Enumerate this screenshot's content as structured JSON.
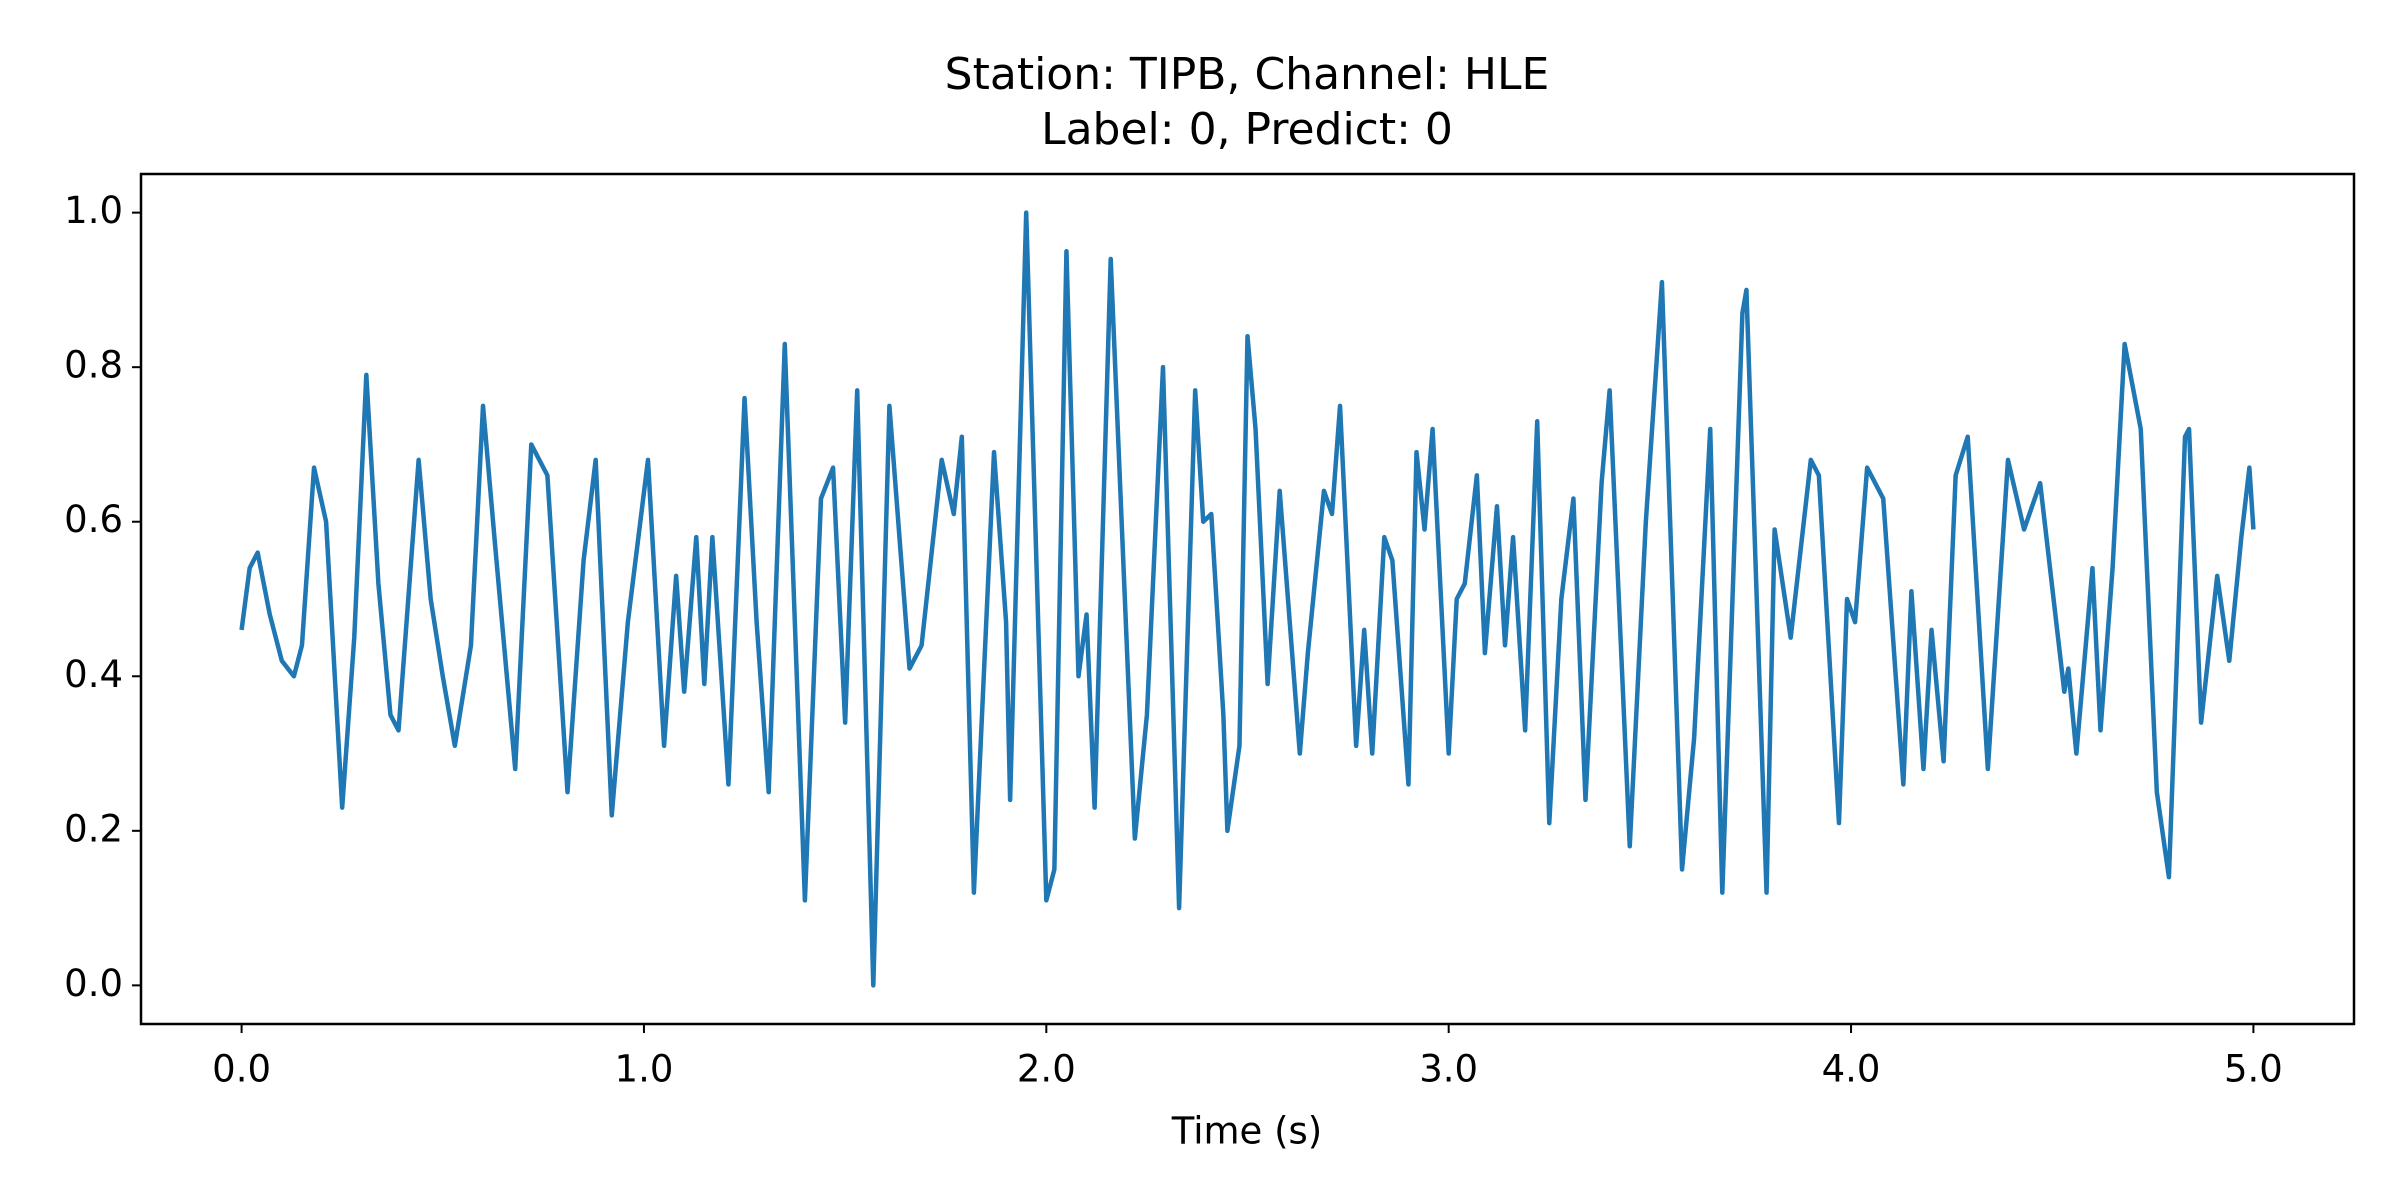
{
  "chart_data": {
    "type": "line",
    "title": [
      "Station: TIPB, Channel: HLE",
      "Label: 0, Predict: 0"
    ],
    "x_label": "Time (s)",
    "xlim": [
      -0.25,
      5.25
    ],
    "ylim": [
      -0.05,
      1.05
    ],
    "xticks": [
      {
        "value": 0,
        "label": "0.0"
      },
      {
        "value": 1,
        "label": "1.0"
      },
      {
        "value": 2,
        "label": "2.0"
      },
      {
        "value": 3,
        "label": "3.0"
      },
      {
        "value": 4,
        "label": "4.0"
      },
      {
        "value": 5,
        "label": "5.0"
      }
    ],
    "yticks": [
      {
        "value": 0,
        "label": "0.0"
      },
      0.2,
      0.4,
      0.6,
      0.8,
      {
        "value": 1,
        "label": "1.0"
      }
    ],
    "grid": false,
    "series": [
      {
        "color": "#1f77b4",
        "x": [
          0,
          0.02,
          0.04,
          0.07,
          0.1,
          0.13,
          0.15,
          0.18,
          0.21,
          0.25,
          0.28,
          0.31,
          0.34,
          0.37,
          0.39,
          0.44,
          0.47,
          0.5,
          0.53,
          0.57,
          0.6,
          0.63,
          0.68,
          0.72,
          0.76,
          0.81,
          0.85,
          0.88,
          0.92,
          0.96,
          1.01,
          1.05,
          1.08,
          1.1,
          1.13,
          1.15,
          1.17,
          1.21,
          1.25,
          1.28,
          1.31,
          1.35,
          1.4,
          1.44,
          1.47,
          1.5,
          1.53,
          1.57,
          1.61,
          1.66,
          1.69,
          1.74,
          1.77,
          1.79,
          1.82,
          1.87,
          1.9,
          1.91,
          1.95,
          2.0,
          2.02,
          2.05,
          2.08,
          2.1,
          2.12,
          2.16,
          2.22,
          2.25,
          2.29,
          2.33,
          2.37,
          2.39,
          2.41,
          2.44,
          2.45,
          2.48,
          2.5,
          2.52,
          2.55,
          2.58,
          2.63,
          2.65,
          2.69,
          2.71,
          2.73,
          2.77,
          2.79,
          2.81,
          2.84,
          2.86,
          2.9,
          2.92,
          2.94,
          2.96,
          3.0,
          3.02,
          3.04,
          3.07,
          3.09,
          3.12,
          3.14,
          3.16,
          3.19,
          3.22,
          3.25,
          3.28,
          3.31,
          3.34,
          3.38,
          3.4,
          3.45,
          3.49,
          3.53,
          3.58,
          3.61,
          3.65,
          3.68,
          3.73,
          3.74,
          3.79,
          3.81,
          3.85,
          3.9,
          3.92,
          3.97,
          3.99,
          4.01,
          4.04,
          4.08,
          4.13,
          4.15,
          4.18,
          4.2,
          4.23,
          4.26,
          4.29,
          4.34,
          4.39,
          4.43,
          4.47,
          4.53,
          4.54,
          4.56,
          4.6,
          4.62,
          4.65,
          4.68,
          4.72,
          4.76,
          4.79,
          4.83,
          4.84,
          4.87,
          4.91,
          4.94,
          4.97,
          4.99,
          5.0
        ],
        "values": [
          0.46,
          0.54,
          0.56,
          0.48,
          0.42,
          0.4,
          0.44,
          0.67,
          0.6,
          0.23,
          0.45,
          0.79,
          0.52,
          0.35,
          0.33,
          0.68,
          0.5,
          0.4,
          0.31,
          0.44,
          0.75,
          0.57,
          0.28,
          0.7,
          0.66,
          0.25,
          0.55,
          0.68,
          0.22,
          0.47,
          0.68,
          0.31,
          0.53,
          0.38,
          0.58,
          0.39,
          0.58,
          0.26,
          0.76,
          0.47,
          0.25,
          0.83,
          0.11,
          0.63,
          0.67,
          0.34,
          0.77,
          0.0,
          0.75,
          0.41,
          0.44,
          0.68,
          0.61,
          0.71,
          0.12,
          0.69,
          0.47,
          0.24,
          1.0,
          0.11,
          0.15,
          0.95,
          0.4,
          0.48,
          0.23,
          0.94,
          0.19,
          0.35,
          0.8,
          0.1,
          0.77,
          0.6,
          0.61,
          0.35,
          0.2,
          0.31,
          0.84,
          0.72,
          0.39,
          0.64,
          0.3,
          0.43,
          0.64,
          0.61,
          0.75,
          0.31,
          0.46,
          0.3,
          0.58,
          0.55,
          0.26,
          0.69,
          0.59,
          0.72,
          0.3,
          0.5,
          0.52,
          0.66,
          0.43,
          0.62,
          0.44,
          0.58,
          0.33,
          0.73,
          0.21,
          0.5,
          0.63,
          0.24,
          0.65,
          0.77,
          0.18,
          0.6,
          0.91,
          0.15,
          0.32,
          0.72,
          0.12,
          0.87,
          0.9,
          0.12,
          0.59,
          0.45,
          0.68,
          0.66,
          0.21,
          0.5,
          0.47,
          0.67,
          0.63,
          0.26,
          0.51,
          0.28,
          0.46,
          0.29,
          0.66,
          0.71,
          0.28,
          0.68,
          0.59,
          0.65,
          0.38,
          0.41,
          0.3,
          0.54,
          0.33,
          0.54,
          0.83,
          0.72,
          0.25,
          0.14,
          0.71,
          0.72,
          0.34,
          0.53,
          0.42,
          0.58,
          0.67,
          0.59
        ]
      }
    ]
  }
}
